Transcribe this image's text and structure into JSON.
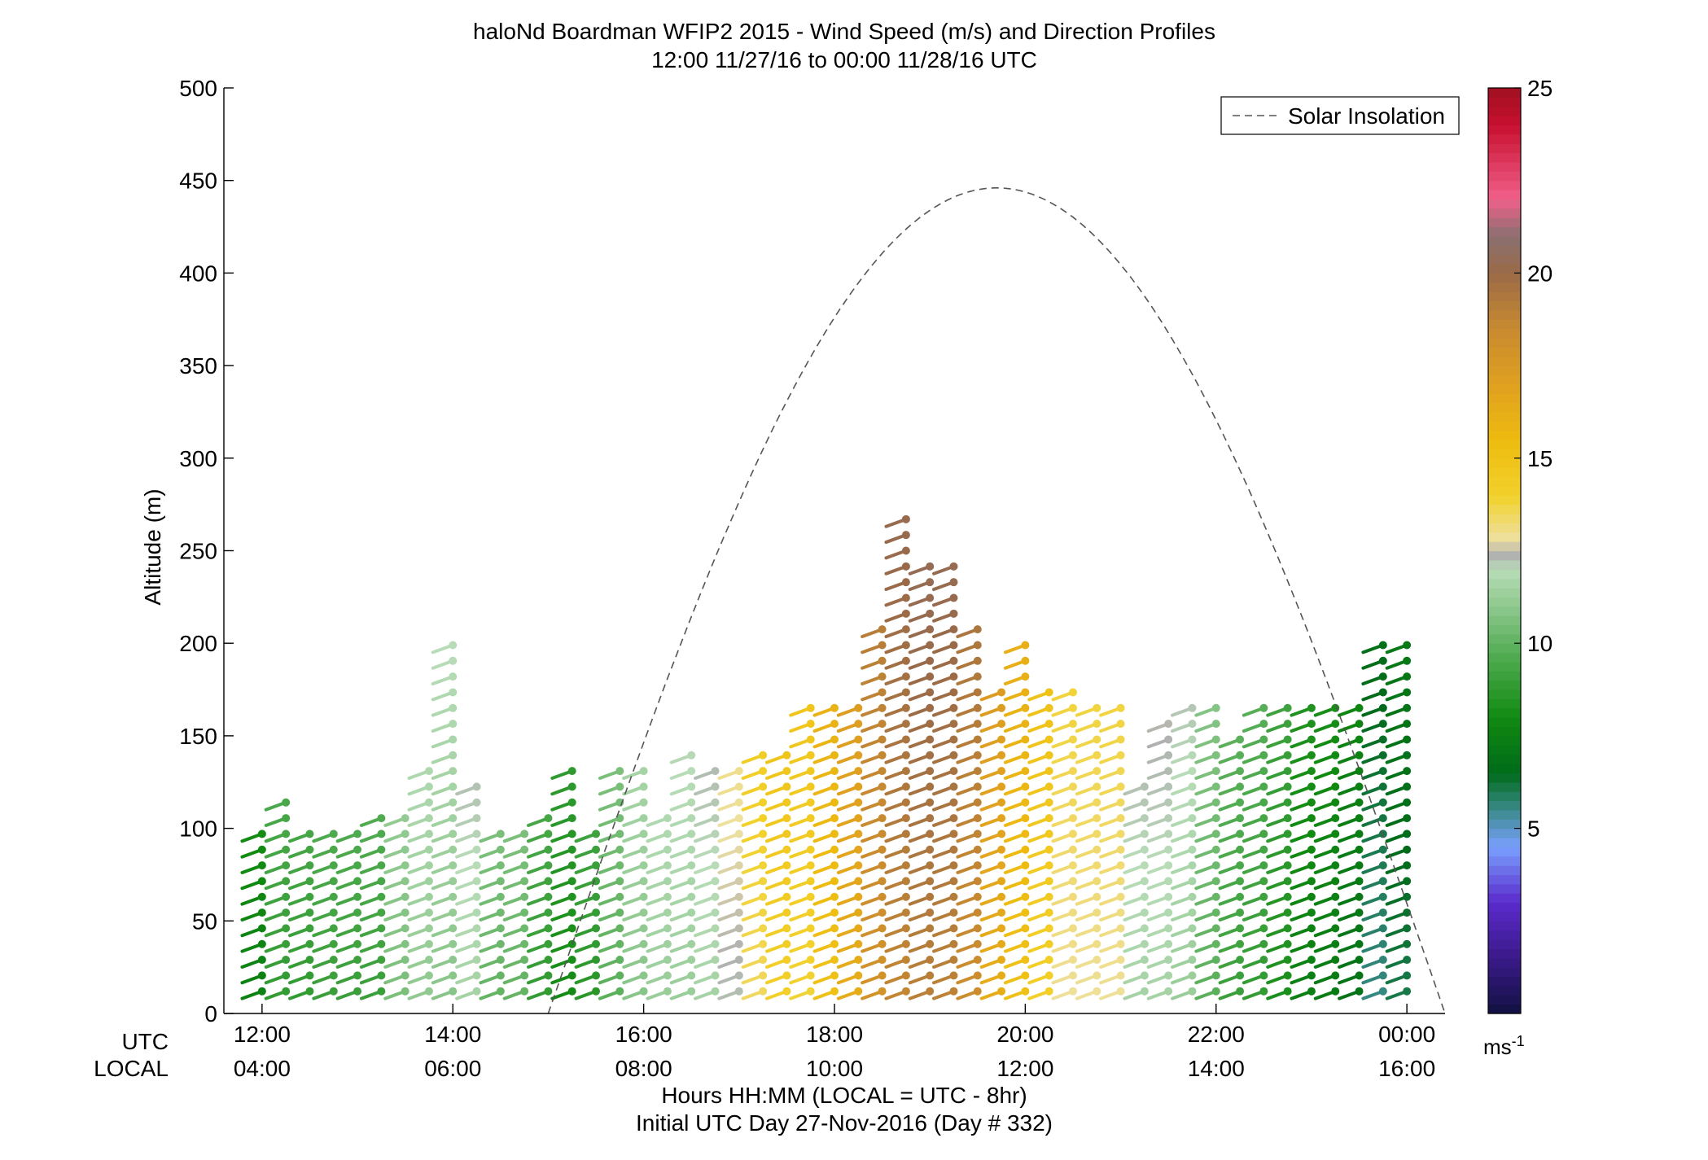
{
  "chart_data": {
    "type": "wind-barb-profile",
    "title": "haloNd Boardman WFIP2 2015 - Wind Speed (m/s) and Direction Profiles",
    "subtitle": "12:00 11/27/16 to 00:00 11/28/16  UTC",
    "ylabel": "Altitude (m)",
    "xlabel": "Hours HH:MM  (LOCAL = UTC - 8hr)",
    "footer": "Initial UTC Day 27-Nov-2016 (Day # 332)",
    "utc_row_label": "UTC",
    "local_row_label": "LOCAL",
    "xlim": [
      11.6,
      24.4
    ],
    "ylim": [
      0,
      500
    ],
    "y_ticks": [
      0,
      50,
      100,
      150,
      200,
      250,
      300,
      350,
      400,
      450,
      500
    ],
    "x_ticks": [
      {
        "x": 12,
        "utc": "12:00",
        "local": "04:00"
      },
      {
        "x": 14,
        "utc": "14:00",
        "local": "06:00"
      },
      {
        "x": 16,
        "utc": "16:00",
        "local": "08:00"
      },
      {
        "x": 18,
        "utc": "18:00",
        "local": "10:00"
      },
      {
        "x": 20,
        "utc": "20:00",
        "local": "12:00"
      },
      {
        "x": 22,
        "utc": "22:00",
        "local": "14:00"
      },
      {
        "x": 24,
        "utc": "00:00",
        "local": "16:00"
      }
    ],
    "legend": {
      "label": "Solar Insolation",
      "placement": "top-right"
    },
    "solar_insolation": {
      "start_x": 15.0,
      "peak_x": 19.7,
      "peak_y": 446,
      "end_x": 24.4
    },
    "colorbar": {
      "range": [
        0,
        25
      ],
      "ticks": [
        5,
        10,
        15,
        20,
        25
      ],
      "unit_label": "ms",
      "unit_exponent": "-1"
    },
    "profile_times": [
      12.0,
      12.25,
      12.5,
      12.75,
      13.0,
      13.25,
      13.5,
      13.75,
      14.0,
      14.25,
      14.5,
      14.75,
      15.0,
      15.25,
      15.5,
      15.75,
      16.0,
      16.25,
      16.5,
      16.75,
      17.0,
      17.25,
      17.5,
      17.75,
      18.0,
      18.25,
      18.5,
      18.75,
      19.0,
      19.25,
      19.5,
      19.75,
      20.0,
      20.25,
      20.5,
      20.75,
      21.0,
      21.25,
      21.5,
      21.75,
      22.0,
      22.25,
      22.5,
      22.75,
      23.0,
      23.25,
      23.5,
      23.75,
      24.0
    ],
    "profile_tops": [
      105,
      115,
      98,
      98,
      98,
      110,
      110,
      132,
      203,
      123,
      98,
      98,
      108,
      132,
      98,
      132,
      132,
      110,
      143,
      132,
      132,
      143,
      143,
      172,
      172,
      172,
      208,
      268,
      248,
      248,
      215,
      180,
      203,
      180,
      180,
      172,
      172,
      125,
      160,
      172,
      172,
      148,
      172,
      172,
      172,
      172,
      172,
      203,
      203
    ],
    "speed_model": {
      "base": [
        7.5,
        8.8,
        8.8,
        9.0,
        9.0,
        9.0,
        10.5,
        11.0,
        10.8,
        11.5,
        10.0,
        10.0,
        8.8,
        8.0,
        8.6,
        9.8,
        10.8,
        11.2,
        11.2,
        11.5,
        12.2,
        13.4,
        14.0,
        13.8,
        15.0,
        16.2,
        17.8,
        18.6,
        18.9,
        18.8,
        18.2,
        16.2,
        15.0,
        14.0,
        12.8,
        12.8,
        12.8,
        11.5,
        11.5,
        11.2,
        9.8,
        9.0,
        8.8,
        8.2,
        7.4,
        7.2,
        6.8,
        5.5,
        6.0
      ],
      "height_gradient_per_100m": 0.6
    },
    "barb_direction_deg": 250
  }
}
